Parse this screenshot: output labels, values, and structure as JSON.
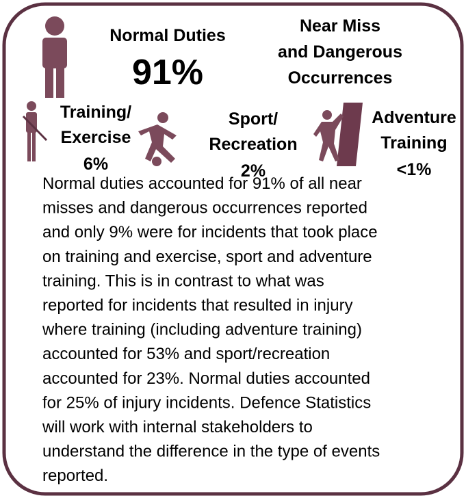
{
  "header": {
    "title": "Normal Duties",
    "value": "91%",
    "subtitle": [
      "Near Miss",
      "and Dangerous",
      "Occurrences"
    ]
  },
  "categories": [
    {
      "label": [
        "Training/",
        "Exercise"
      ],
      "value": "6%"
    },
    {
      "label": [
        "Sport/",
        "Recreation"
      ],
      "value": "2%"
    },
    {
      "label": [
        "Adventure",
        "Training"
      ],
      "value": "<1%"
    }
  ],
  "paragraph": [
    "Normal duties accounted for 91% of all near",
    "misses and dangerous occurrences reported",
    "and only 9% were for incidents that took place",
    "on training and exercise, sport and adventure",
    "training. This is in contrast to what was",
    "reported for incidents that resulted in injury",
    "where training (including adventure training)",
    "accounted for 53% and sport/recreation",
    "accounted for 23%. Normal duties accounted",
    "for 25% of injury incidents. Defence Statistics",
    "will work with internal stakeholders to",
    "understand the difference in the type of events",
    "reported."
  ]
}
